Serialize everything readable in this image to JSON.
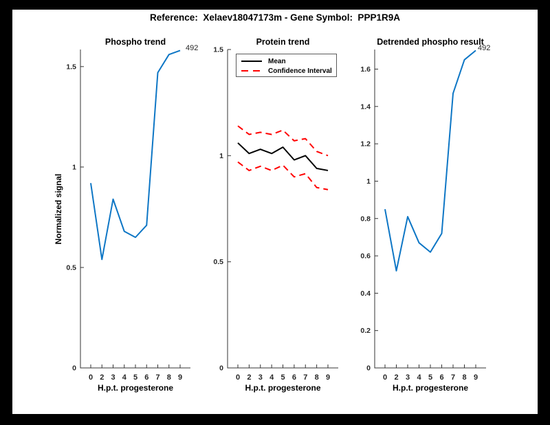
{
  "figure": {
    "title": "Reference:  Xelaev18047173m - Gene Symbol:  PPP1R9A"
  },
  "colors": {
    "signal_line": "#0d76c5",
    "mean_line": "#000000",
    "ci_line": "#ff0000",
    "axis": "#333333",
    "tick_label": "#262626",
    "figure_border": "#000000",
    "figure_background": "#ffffff"
  },
  "chart_data": [
    {
      "type": "line",
      "title": "Phospho trend",
      "xlabel": "H.p.t. progesterone",
      "ylabel": "Normalized signal",
      "x": [
        0,
        2,
        3,
        4,
        5,
        6,
        7,
        8,
        9
      ],
      "x_tick_labels": [
        "0",
        "2",
        "3",
        "4",
        "5",
        "6",
        "7",
        "8",
        "9"
      ],
      "y_ticks": [
        0,
        0.5,
        1,
        1.5
      ],
      "y_tick_labels": [
        "0",
        "0.5",
        "1",
        "1.5"
      ],
      "ylim": [
        0,
        1.585
      ],
      "grid": false,
      "legend": null,
      "series": [
        {
          "name": "phospho-signal",
          "color": "#0d76c5",
          "style": "solid",
          "values": [
            0.92,
            0.54,
            0.84,
            0.68,
            0.65,
            0.71,
            1.47,
            1.56,
            1.58
          ]
        }
      ],
      "annotation": {
        "text": "492",
        "at": "last-point"
      }
    },
    {
      "type": "line",
      "title": "Protein trend",
      "xlabel": "H.p.t. progesterone",
      "ylabel": "",
      "x": [
        0,
        2,
        3,
        4,
        5,
        6,
        7,
        8,
        9
      ],
      "x_tick_labels": [
        "0",
        "2",
        "3",
        "4",
        "5",
        "6",
        "7",
        "8",
        "9"
      ],
      "y_ticks": [
        0,
        0.5,
        1,
        1.5
      ],
      "y_tick_labels": [
        "0",
        "0.5",
        "1",
        "1.5"
      ],
      "ylim": [
        0,
        1.5
      ],
      "grid": false,
      "legend": {
        "position": "top-left",
        "entries": [
          {
            "label": "Mean",
            "color": "#000000",
            "style": "solid"
          },
          {
            "label": "Confidence Interval",
            "color": "#ff0000",
            "style": "dashed"
          }
        ]
      },
      "series": [
        {
          "name": "mean",
          "color": "#000000",
          "style": "solid",
          "values": [
            1.06,
            1.01,
            1.03,
            1.01,
            1.04,
            0.98,
            1.0,
            0.94,
            0.93
          ]
        },
        {
          "name": "ci-upper",
          "color": "#ff0000",
          "style": "dashed",
          "values": [
            1.14,
            1.1,
            1.11,
            1.1,
            1.12,
            1.07,
            1.08,
            1.02,
            1.0
          ]
        },
        {
          "name": "ci-lower",
          "color": "#ff0000",
          "style": "dashed",
          "values": [
            0.97,
            0.93,
            0.95,
            0.93,
            0.955,
            0.9,
            0.915,
            0.85,
            0.84
          ]
        }
      ],
      "annotation": null
    },
    {
      "type": "line",
      "title": "Detrended phospho result",
      "xlabel": "H.p.t. progesterone",
      "ylabel": "",
      "x": [
        0,
        2,
        3,
        4,
        5,
        6,
        7,
        8,
        9
      ],
      "x_tick_labels": [
        "0",
        "2",
        "3",
        "4",
        "5",
        "6",
        "7",
        "8",
        "9"
      ],
      "y_ticks": [
        0,
        0.2,
        0.4,
        0.6,
        0.8,
        1,
        1.2,
        1.4,
        1.6
      ],
      "y_tick_labels": [
        "0",
        "0.2",
        "0.4",
        "0.6",
        "0.8",
        "1",
        "1.2",
        "1.4",
        "1.6"
      ],
      "ylim": [
        0,
        1.705
      ],
      "grid": false,
      "legend": null,
      "series": [
        {
          "name": "detrended-signal",
          "color": "#0d76c5",
          "style": "solid",
          "values": [
            0.85,
            0.52,
            0.81,
            0.67,
            0.62,
            0.72,
            1.47,
            1.65,
            1.7
          ]
        }
      ],
      "annotation": {
        "text": "492",
        "at": "last-point"
      }
    }
  ]
}
